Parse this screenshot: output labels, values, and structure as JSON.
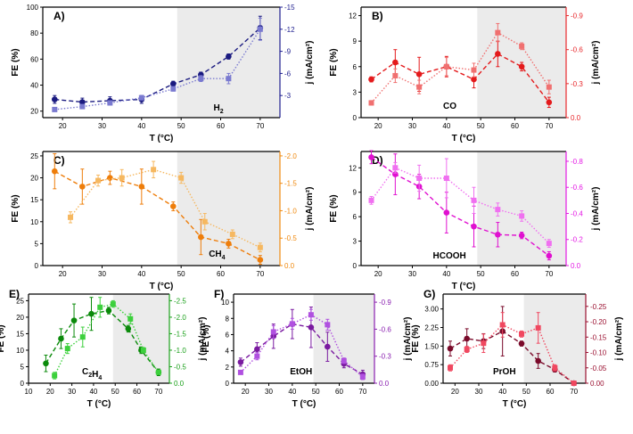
{
  "figure": {
    "shading_start": 49
  },
  "chart_data": [
    {
      "type": "line",
      "panel_label": "A)",
      "species_label": "H2",
      "color": "#1f1f8f",
      "color_fe": "#1a1a80",
      "color_j": "#7a7ad0",
      "xlabel": "T (°C)",
      "ylabel_left": "FE (%)",
      "ylabel_right": "j (mA/cm²)",
      "x_ticks": [
        20,
        30,
        40,
        50,
        60,
        70
      ],
      "xlim": [
        15,
        75
      ],
      "ylim_left": [
        15,
        100
      ],
      "yticks_left": [
        20,
        40,
        60,
        80,
        100
      ],
      "ylim_right": [
        0,
        -15
      ],
      "yticks_right": [
        -3,
        -6,
        -9,
        -12,
        -15
      ],
      "yticks_right_labels": [
        "-3",
        "-6",
        "-9",
        "-12",
        "-15"
      ],
      "series": [
        {
          "name": "FE",
          "axis": "left",
          "marker": "circle",
          "style": "dashed",
          "x": [
            18,
            25,
            32,
            40,
            48,
            55,
            62,
            70
          ],
          "y": [
            29,
            27,
            28,
            29,
            41,
            48,
            62,
            84
          ],
          "err": [
            3,
            3,
            3,
            3,
            2,
            2,
            2,
            9
          ]
        },
        {
          "name": "j",
          "axis": "right",
          "marker": "square",
          "style": "dotted",
          "x": [
            18,
            25,
            32,
            40,
            48,
            55,
            62,
            70
          ],
          "y": [
            -1.1,
            -1.5,
            -2.0,
            -2.7,
            -3.9,
            -5.3,
            -5.3,
            -12.0
          ],
          "err": [
            0.2,
            0.2,
            0.3,
            0.3,
            0.3,
            0.4,
            0.7,
            1.5
          ]
        }
      ]
    },
    {
      "type": "line",
      "panel_label": "B)",
      "species_label": "CO",
      "color": "#e8292d",
      "color_fe": "#e41a1c",
      "color_j": "#f07070",
      "xlabel": "T (°C)",
      "ylabel_left": "FE (%)",
      "ylabel_right": "j (mA/cm²)",
      "x_ticks": [
        20,
        30,
        40,
        50,
        60,
        70
      ],
      "xlim": [
        15,
        75
      ],
      "ylim_left": [
        0,
        13
      ],
      "yticks_left": [
        0,
        3,
        6,
        9,
        12
      ],
      "ylim_right": [
        0,
        -0.975
      ],
      "yticks_right": [
        0,
        -0.3,
        -0.6,
        -0.9
      ],
      "yticks_right_labels": [
        "0.0",
        "-0.3",
        "-0.6",
        "-0.9"
      ],
      "series": [
        {
          "name": "FE",
          "axis": "left",
          "marker": "circle",
          "style": "dashed",
          "x": [
            18,
            25,
            32,
            40,
            48,
            55,
            62,
            70
          ],
          "y": [
            4.5,
            6.5,
            5.1,
            6.0,
            4.5,
            7.5,
            6.0,
            1.8
          ],
          "err": [
            0.3,
            1.5,
            2.0,
            1.2,
            1.0,
            1.5,
            0.5,
            0.6
          ]
        },
        {
          "name": "j",
          "axis": "right",
          "marker": "square",
          "style": "dotted",
          "x": [
            18,
            25,
            32,
            40,
            48,
            55,
            62,
            70
          ],
          "y": [
            -0.13,
            -0.37,
            -0.27,
            -0.45,
            -0.42,
            -0.75,
            -0.63,
            -0.27
          ],
          "err": [
            0.02,
            0.06,
            0.06,
            0.08,
            0.06,
            0.08,
            0.03,
            0.06
          ]
        }
      ]
    },
    {
      "type": "line",
      "panel_label": "C)",
      "species_label": "CH4",
      "color": "#f08a10",
      "color_fe": "#ee7d0a",
      "color_j": "#f6b860",
      "xlabel": "T (°C)",
      "ylabel_left": "FE (%)",
      "ylabel_right": "j (mA/cm²)",
      "x_ticks": [
        20,
        30,
        40,
        50,
        60,
        70
      ],
      "xlim": [
        15,
        75
      ],
      "ylim_left": [
        0,
        26
      ],
      "yticks_left": [
        0,
        5,
        10,
        15,
        20,
        25
      ],
      "ylim_right": [
        0,
        -2.08
      ],
      "yticks_right": [
        0,
        -0.5,
        -1.0,
        -1.5,
        -2.0
      ],
      "yticks_right_labels": [
        "0.0",
        "-0.5",
        "-1.0",
        "-1.5",
        "-2.0"
      ],
      "series": [
        {
          "name": "FE",
          "axis": "left",
          "marker": "circle",
          "style": "dashed",
          "x": [
            18,
            25,
            32,
            40,
            48,
            55,
            62,
            70
          ],
          "y": [
            21.5,
            18.0,
            20.0,
            18.0,
            13.5,
            6.5,
            5.0,
            1.3
          ],
          "err": [
            4,
            4,
            1.5,
            4,
            1,
            4,
            1,
            1
          ]
        },
        {
          "name": "j",
          "axis": "right",
          "marker": "square",
          "style": "dotted",
          "x": [
            22,
            29,
            35,
            43,
            50,
            56,
            63,
            70
          ],
          "y": [
            -0.88,
            -1.55,
            -1.6,
            -1.75,
            -1.6,
            -0.8,
            -0.57,
            -0.33
          ],
          "err": [
            0.1,
            0.1,
            0.15,
            0.15,
            0.1,
            0.15,
            0.08,
            0.08
          ]
        }
      ]
    },
    {
      "type": "line",
      "panel_label": "D)",
      "species_label": "HCOOH",
      "color": "#e41ae4",
      "color_fe": "#e010d0",
      "color_j": "#f070f0",
      "xlabel": "T (°C)",
      "ylabel_left": "FE (%)",
      "ylabel_right": "j (mA/cm²)",
      "x_ticks": [
        20,
        30,
        40,
        50,
        60,
        70
      ],
      "xlim": [
        15,
        75
      ],
      "ylim_left": [
        0,
        14
      ],
      "yticks_left": [
        0,
        3,
        6,
        9,
        12
      ],
      "ylim_right": [
        0,
        -0.875
      ],
      "yticks_right": [
        0,
        -0.2,
        -0.4,
        -0.6,
        -0.8
      ],
      "yticks_right_labels": [
        "0.0",
        "-0.2",
        "-0.4",
        "-0.6",
        "-0.8"
      ],
      "series": [
        {
          "name": "FE",
          "axis": "left",
          "marker": "circle",
          "style": "dashed",
          "x": [
            18,
            25,
            32,
            40,
            48,
            55,
            62,
            70
          ],
          "y": [
            13.3,
            11.2,
            9.7,
            6.5,
            4.8,
            3.8,
            3.7,
            1.2
          ],
          "err": [
            0.8,
            2.5,
            1.5,
            2.5,
            2.5,
            1.5,
            0.4,
            0.5
          ]
        },
        {
          "name": "j",
          "axis": "right",
          "marker": "square",
          "style": "dotted",
          "x": [
            18,
            25,
            32,
            40,
            48,
            55,
            62,
            70
          ],
          "y": [
            -0.5,
            -0.75,
            -0.67,
            -0.67,
            -0.5,
            -0.43,
            -0.38,
            -0.17
          ],
          "err": [
            0.03,
            0.04,
            0.1,
            0.15,
            0.1,
            0.05,
            0.04,
            0.03
          ]
        }
      ]
    },
    {
      "type": "line",
      "panel_label": "E)",
      "species_label": "C2H4",
      "color": "#1aa01a",
      "color_fe": "#0a8a0a",
      "color_j": "#3cd03c",
      "xlabel": "T (°C)",
      "ylabel_left": "FE (%)",
      "ylabel_right": "j (mA/cm²)",
      "x_ticks": [
        10,
        20,
        30,
        40,
        50,
        60,
        70
      ],
      "xlim": [
        10,
        75
      ],
      "ylim_left": [
        0,
        27
      ],
      "yticks_left": [
        0,
        5,
        10,
        15,
        20,
        25
      ],
      "ylim_right": [
        0,
        -2.7
      ],
      "yticks_right": [
        0,
        -0.5,
        -1.0,
        -1.5,
        -2.0,
        -2.5
      ],
      "yticks_right_labels": [
        "0.0",
        "-0.5",
        "-1.0",
        "-1.5",
        "-2.0",
        "-2.5"
      ],
      "series": [
        {
          "name": "FE",
          "axis": "left",
          "marker": "circle",
          "style": "dashed",
          "x": [
            18,
            25,
            31,
            39,
            47,
            56,
            62,
            70
          ],
          "y": [
            6.0,
            13.5,
            19.0,
            21.0,
            22.0,
            16.5,
            10.0,
            3.3
          ],
          "err": [
            2.5,
            3,
            5,
            5,
            1,
            1,
            1,
            1
          ]
        },
        {
          "name": "j",
          "axis": "right",
          "marker": "square",
          "style": "dotted",
          "x": [
            22,
            28,
            35,
            43,
            49,
            57,
            63,
            70
          ],
          "y": [
            -0.23,
            -1.05,
            -1.4,
            -2.3,
            -2.4,
            -1.95,
            -1.0,
            -0.33
          ],
          "err": [
            0.1,
            0.15,
            0.3,
            0.3,
            0.1,
            0.15,
            0.08,
            0.05
          ]
        }
      ]
    },
    {
      "type": "line",
      "panel_label": "F)",
      "species_label": "EtOH",
      "color": "#8a20b0",
      "color_fe": "#7a1aa0",
      "color_j": "#b050e0",
      "xlabel": "T (°C)",
      "ylabel_left": "FE (%)",
      "ylabel_right": "j (mA/cm²)",
      "x_ticks": [
        20,
        30,
        40,
        50,
        60,
        70
      ],
      "xlim": [
        15,
        75
      ],
      "ylim_left": [
        0,
        11
      ],
      "yticks_left": [
        0,
        2,
        4,
        6,
        8,
        10
      ],
      "ylim_right": [
        0,
        -0.99
      ],
      "yticks_right": [
        0,
        -0.3,
        -0.6,
        -0.9
      ],
      "yticks_right_labels": [
        "0.0",
        "-0.3",
        "-0.6",
        "-0.9"
      ],
      "series": [
        {
          "name": "FE",
          "axis": "left",
          "marker": "circle",
          "style": "dashed",
          "x": [
            18,
            25,
            32,
            40,
            48,
            55,
            62,
            70
          ],
          "y": [
            2.6,
            4.2,
            5.8,
            7.3,
            6.9,
            4.5,
            2.4,
            1.1
          ],
          "err": [
            0.5,
            0.8,
            1.5,
            1.8,
            2.5,
            1.8,
            0.5,
            0.5
          ]
        },
        {
          "name": "j",
          "axis": "right",
          "marker": "square",
          "style": "dotted",
          "x": [
            18,
            25,
            32,
            40,
            48,
            55,
            62,
            70
          ],
          "y": [
            -0.12,
            -0.3,
            -0.57,
            -0.66,
            -0.76,
            -0.65,
            -0.25,
            -0.07
          ],
          "err": [
            0.02,
            0.04,
            0.07,
            0.06,
            0.06,
            0.06,
            0.03,
            0.03
          ]
        }
      ]
    },
    {
      "type": "line",
      "panel_label": "G)",
      "species_label": "PrOH",
      "color": "#9a1030",
      "color_fe": "#7a0a2a",
      "color_j": "#f04860",
      "xlabel": "T (°C)",
      "ylabel_left": "FE (%)",
      "ylabel_right": "j (mA/cm²)",
      "x_ticks": [
        20,
        30,
        40,
        50,
        60,
        70
      ],
      "xlim": [
        15,
        75
      ],
      "ylim_left": [
        0,
        3.6
      ],
      "yticks_left": [
        0,
        0.75,
        1.5,
        2.25,
        3.0
      ],
      "yticks_left_labels": [
        "0.00",
        "0.75",
        "1.50",
        "2.25",
        "3.00"
      ],
      "ylim_right": [
        0,
        -0.29
      ],
      "yticks_right": [
        0,
        -0.05,
        -0.1,
        -0.15,
        -0.2,
        -0.25
      ],
      "yticks_right_labels": [
        "0.00",
        "-0.05",
        "-0.10",
        "-0.15",
        "-0.20",
        "-0.25"
      ],
      "series": [
        {
          "name": "FE",
          "axis": "left",
          "marker": "circle",
          "style": "dashed",
          "x": [
            18,
            25,
            32,
            40,
            48,
            55,
            62,
            70
          ],
          "y": [
            1.4,
            1.8,
            1.7,
            2.1,
            1.6,
            0.9,
            0.55,
            0.0
          ],
          "err": [
            0.3,
            0.4,
            0.3,
            1.0,
            0.1,
            0.3,
            0.1,
            0.05
          ]
        },
        {
          "name": "j",
          "axis": "right",
          "marker": "square",
          "style": "dotted",
          "x": [
            18,
            25,
            32,
            40,
            48,
            55,
            62,
            70
          ],
          "y": [
            -0.05,
            -0.11,
            -0.13,
            -0.19,
            -0.16,
            -0.18,
            -0.05,
            0.0
          ],
          "err": [
            0.01,
            0.01,
            0.03,
            0.04,
            0.01,
            0.05,
            0.01,
            0.005
          ]
        }
      ]
    }
  ]
}
